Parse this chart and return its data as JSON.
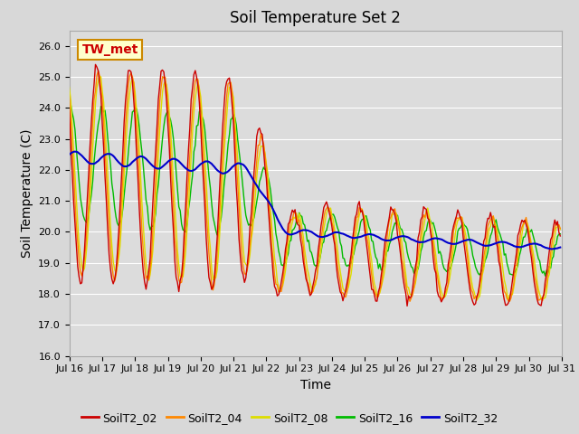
{
  "title": "Soil Temperature Set 2",
  "xlabel": "Time",
  "ylabel": "Soil Temperature (C)",
  "ylim": [
    16.0,
    26.5
  ],
  "yticks": [
    16.0,
    17.0,
    18.0,
    19.0,
    20.0,
    21.0,
    22.0,
    23.0,
    24.0,
    25.0,
    26.0
  ],
  "colors": {
    "SoilT2_02": "#cc0000",
    "SoilT2_04": "#ff8800",
    "SoilT2_08": "#dddd00",
    "SoilT2_16": "#00bb00",
    "SoilT2_32": "#0000cc"
  },
  "annotation_text": "TW_met",
  "annotation_box_color": "#ffffcc",
  "annotation_box_edge": "#cc8800",
  "plot_bg": "#dcdcdc",
  "grid_color": "#ffffff",
  "title_fontsize": 12,
  "axis_label_fontsize": 10,
  "tick_fontsize": 8,
  "legend_fontsize": 9,
  "n_hours": 384,
  "n_days": 16
}
